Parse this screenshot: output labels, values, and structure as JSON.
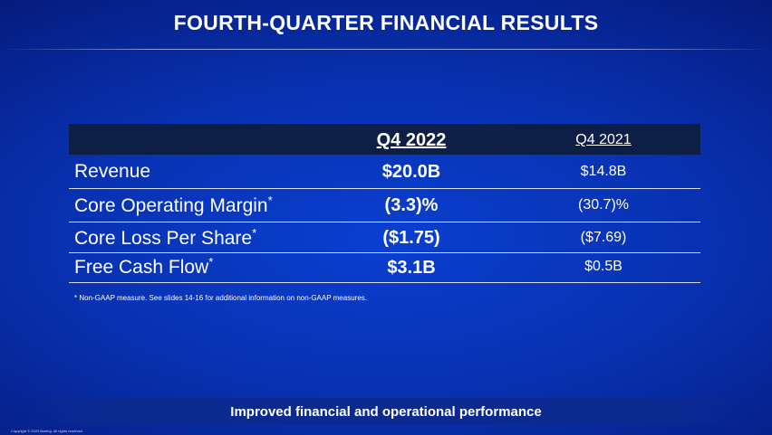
{
  "slide": {
    "title": "FOURTH-QUARTER FINANCIAL RESULTS",
    "table": {
      "headers": [
        "Q4 2022",
        "Q4 2021"
      ],
      "rows": [
        {
          "label": "Revenue",
          "sup": "",
          "q4_2022": "$20.0B",
          "q4_2021": "$14.8B"
        },
        {
          "label": "Core Operating Margin",
          "sup": "*",
          "q4_2022": "(3.3)%",
          "q4_2021": "(30.7)%"
        },
        {
          "label": "Core Loss Per Share",
          "sup": "*",
          "q4_2022": "($1.75)",
          "q4_2021": "($7.69)"
        },
        {
          "label": "Free Cash Flow",
          "sup": "*",
          "q4_2022": "$3.1B",
          "q4_2021": "$0.5B"
        }
      ]
    },
    "footnote": "* Non-GAAP measure. See slides 14-16 for additional information on non-GAAP measures.",
    "banner": "Improved financial and operational performance",
    "copyright": "Copyright © 2023 Boeing. All rights reserved."
  },
  "colors": {
    "background": "#0831b0",
    "header_row": "#0d1f45",
    "text": "#ffffff"
  }
}
